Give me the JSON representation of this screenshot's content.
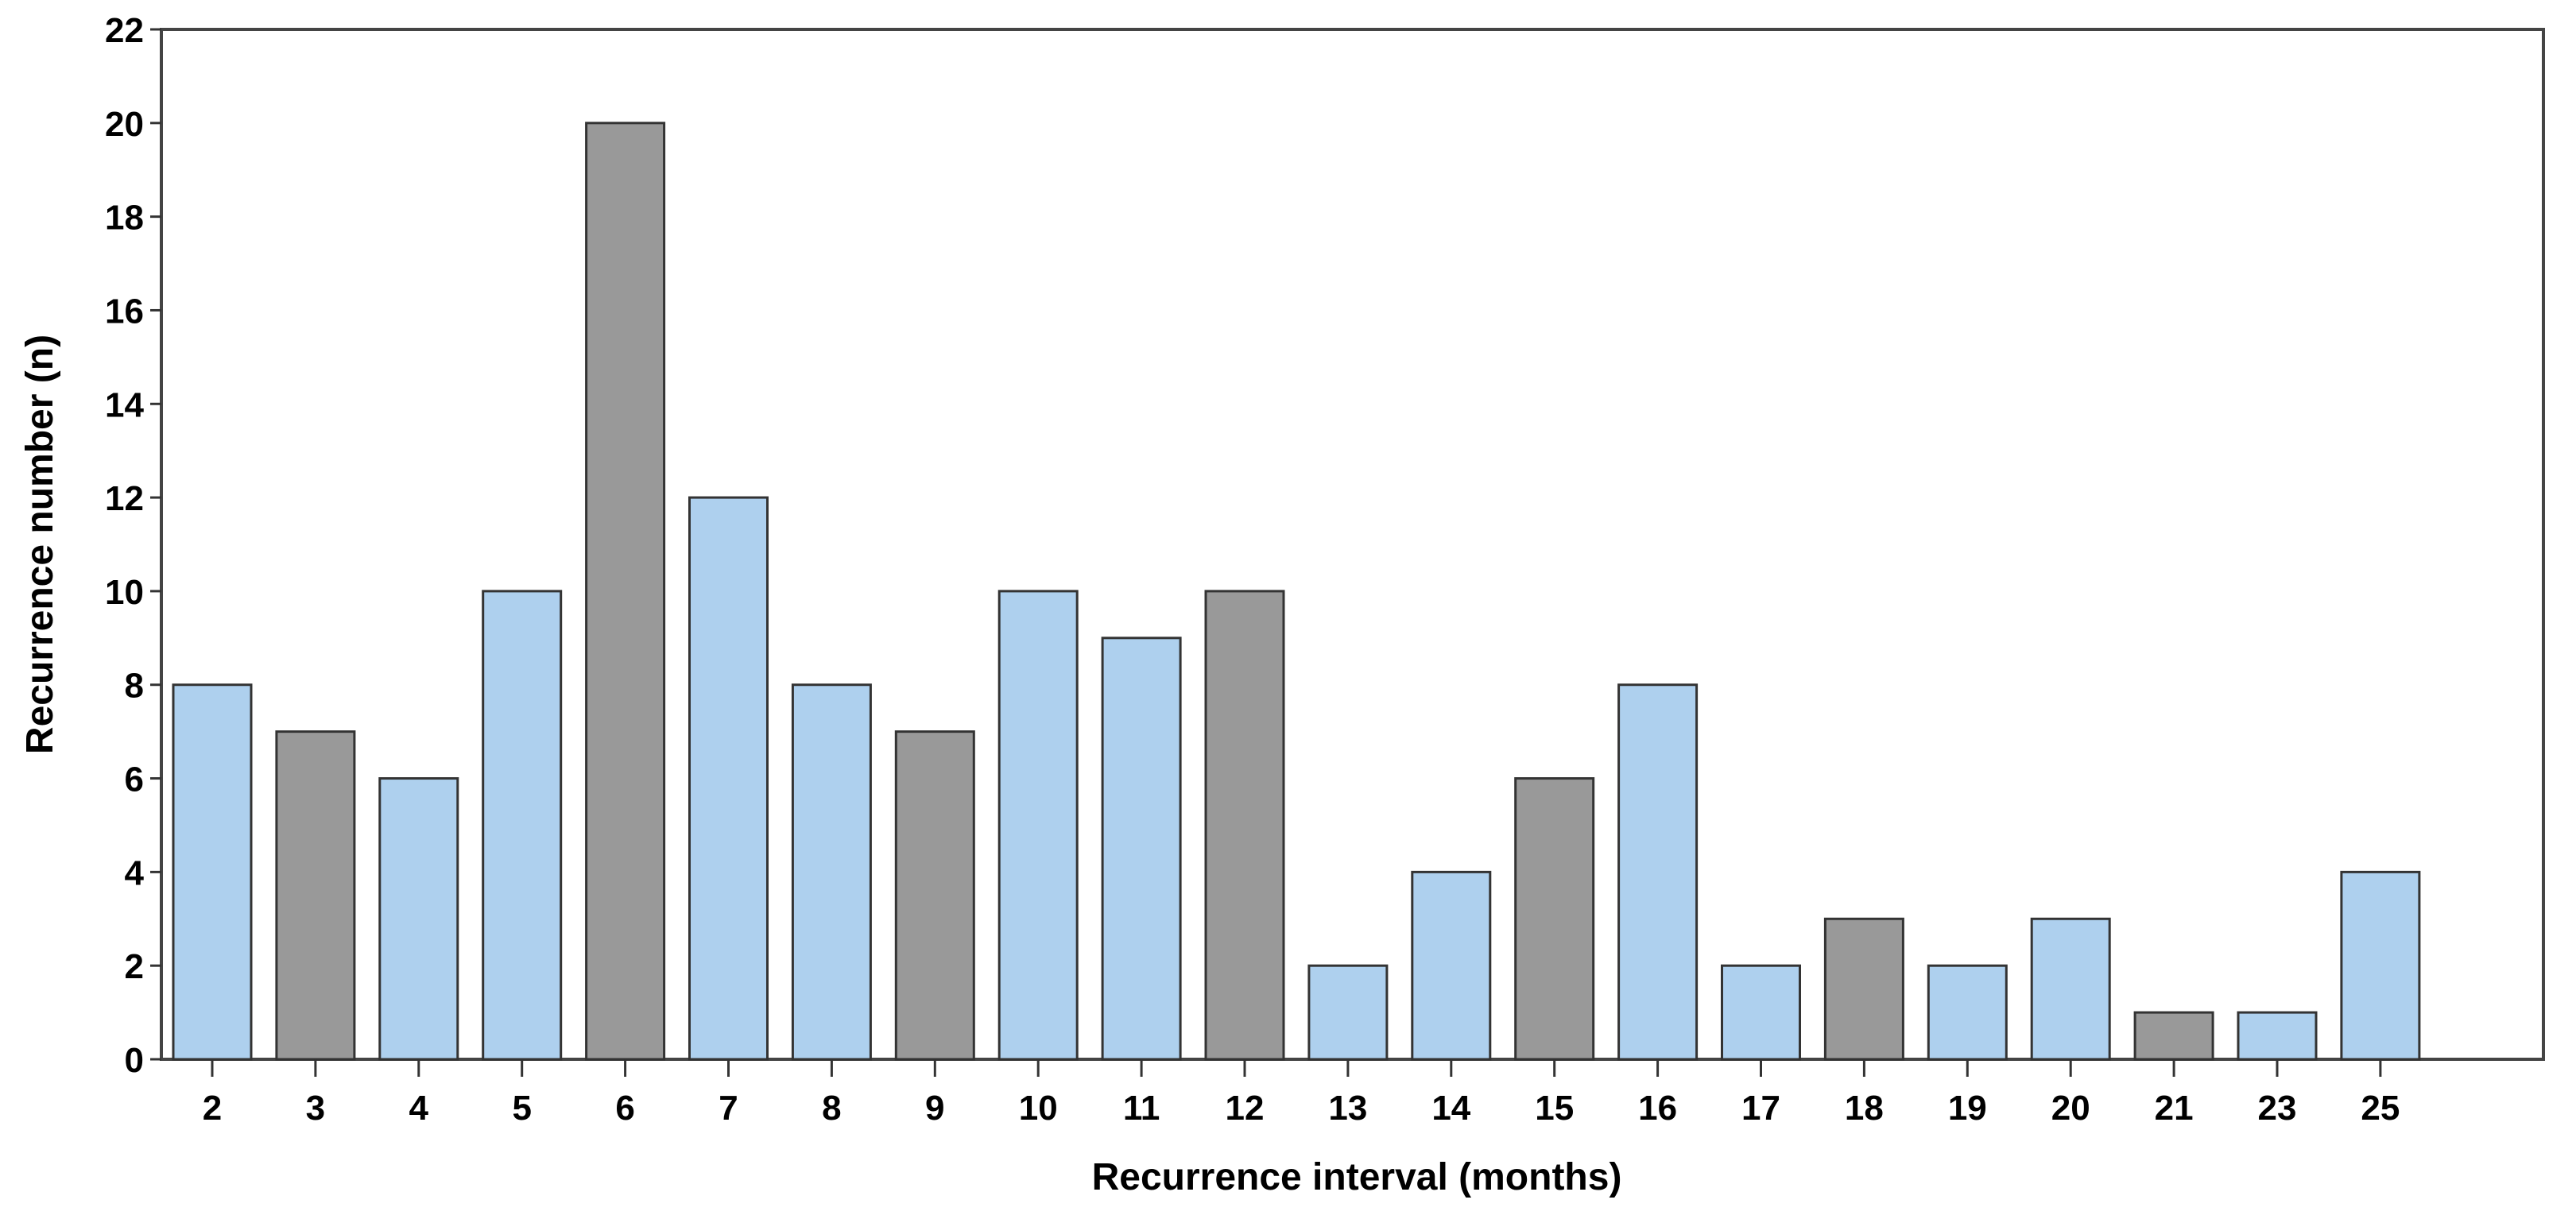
{
  "chart_data": {
    "type": "bar",
    "title": "",
    "xlabel": "Recurrence interval (months)",
    "ylabel": "Recurrence number (n)",
    "categories": [
      "2",
      "3",
      "4",
      "5",
      "6",
      "7",
      "8",
      "9",
      "10",
      "11",
      "12",
      "13",
      "14",
      "15",
      "16",
      "17",
      "18",
      "19",
      "20",
      "21",
      "23",
      "25"
    ],
    "values": [
      8,
      7,
      6,
      10,
      20,
      12,
      8,
      7,
      10,
      9,
      10,
      2,
      4,
      6,
      8,
      2,
      3,
      2,
      3,
      1,
      1,
      4
    ],
    "bar_colors": [
      "#aed0ee",
      "#999999",
      "#aed0ee",
      "#aed0ee",
      "#999999",
      "#aed0ee",
      "#aed0ee",
      "#999999",
      "#aed0ee",
      "#aed0ee",
      "#999999",
      "#aed0ee",
      "#aed0ee",
      "#999999",
      "#aed0ee",
      "#aed0ee",
      "#999999",
      "#aed0ee",
      "#aed0ee",
      "#999999",
      "#aed0ee",
      "#aed0ee"
    ],
    "ylim": [
      0,
      22
    ],
    "yticks": [
      0,
      2,
      4,
      6,
      8,
      10,
      12,
      14,
      16,
      18,
      20,
      22
    ],
    "grid": false,
    "legend": "none"
  }
}
